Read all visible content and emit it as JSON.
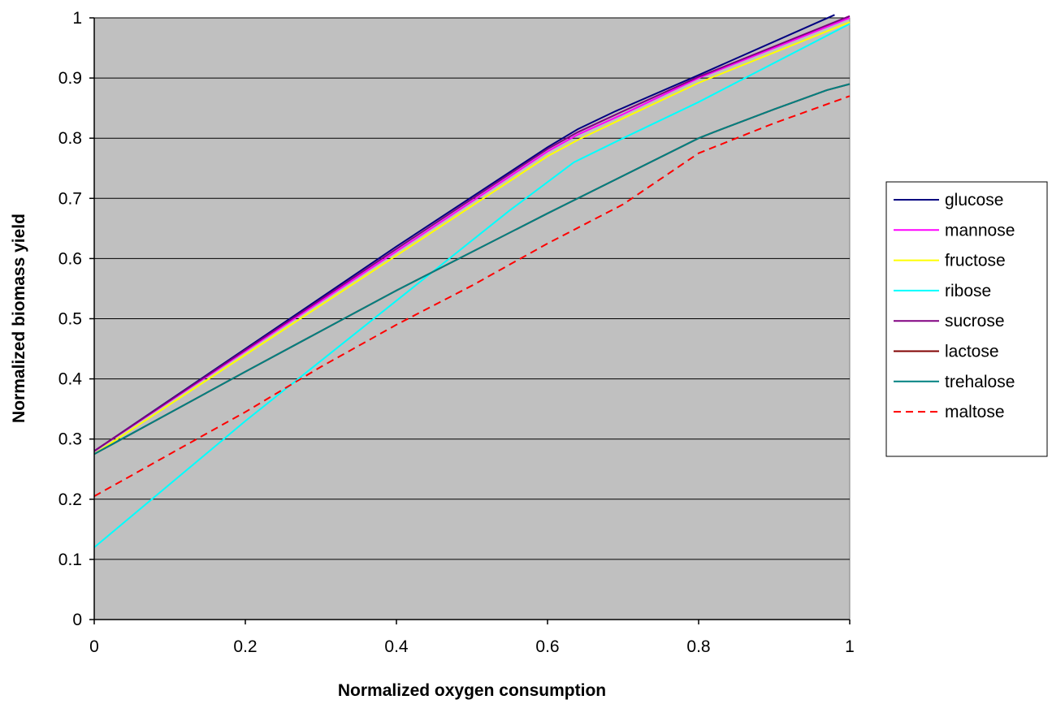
{
  "chart_data": {
    "type": "line",
    "title": "",
    "xlabel": "Normalized oxygen consumption",
    "ylabel": "Normalized biomass yield",
    "xlim": [
      0,
      1
    ],
    "ylim": [
      0,
      1
    ],
    "xticks": [
      "0",
      "0.2",
      "0.4",
      "0.6",
      "0.8",
      "1"
    ],
    "yticks": [
      "0",
      "0.1",
      "0.2",
      "0.3",
      "0.4",
      "0.5",
      "0.6",
      "0.7",
      "0.8",
      "0.9",
      "1"
    ],
    "grid": "horizontal",
    "legend_position": "right",
    "plot_background": "#c0c0c0",
    "series": [
      {
        "name": "glucose",
        "color": "#000080",
        "dash": "solid",
        "points": [
          [
            0,
            0.28
          ],
          [
            0.2,
            0.45
          ],
          [
            0.4,
            0.62
          ],
          [
            0.6,
            0.785
          ],
          [
            0.64,
            0.815
          ],
          [
            0.69,
            0.845
          ],
          [
            0.8,
            0.905
          ],
          [
            0.98,
            1.005
          ]
        ]
      },
      {
        "name": "mannose",
        "color": "#ff00ff",
        "dash": "solid",
        "points": [
          [
            0,
            0.28
          ],
          [
            0.2,
            0.446
          ],
          [
            0.4,
            0.612
          ],
          [
            0.6,
            0.778
          ],
          [
            0.64,
            0.806
          ],
          [
            0.7,
            0.84
          ],
          [
            0.8,
            0.9
          ],
          [
            1.0,
            1.0
          ]
        ]
      },
      {
        "name": "fructose",
        "color": "#ffff00",
        "dash": "solid",
        "points": [
          [
            0,
            0.275
          ],
          [
            0.2,
            0.44
          ],
          [
            0.4,
            0.605
          ],
          [
            0.6,
            0.77
          ],
          [
            0.64,
            0.797
          ],
          [
            0.7,
            0.833
          ],
          [
            0.8,
            0.892
          ],
          [
            1.0,
            0.993
          ]
        ]
      },
      {
        "name": "ribose",
        "color": "#00ffff",
        "dash": "solid",
        "points": [
          [
            0,
            0.12
          ],
          [
            0.2,
            0.33
          ],
          [
            0.4,
            0.53
          ],
          [
            0.55,
            0.68
          ],
          [
            0.635,
            0.76
          ],
          [
            0.7,
            0.8
          ],
          [
            0.8,
            0.86
          ],
          [
            1.0,
            0.99
          ]
        ]
      },
      {
        "name": "sucrose",
        "color": "#800080",
        "dash": "solid",
        "points": [
          [
            0,
            0.28
          ],
          [
            0.2,
            0.448
          ],
          [
            0.4,
            0.616
          ],
          [
            0.6,
            0.782
          ],
          [
            0.64,
            0.81
          ],
          [
            0.695,
            0.842
          ],
          [
            0.8,
            0.902
          ],
          [
            1.0,
            1.003
          ]
        ]
      },
      {
        "name": "lactose",
        "color": "#800000",
        "dash": "solid",
        "points": [
          [
            0,
            0.275
          ],
          [
            0.2,
            0.412
          ],
          [
            0.4,
            0.547
          ],
          [
            0.6,
            0.675
          ],
          [
            0.8,
            0.8
          ],
          [
            0.82,
            0.81
          ],
          [
            0.9,
            0.848
          ],
          [
            0.97,
            0.88
          ],
          [
            1.0,
            0.89
          ]
        ]
      },
      {
        "name": "trehalose",
        "color": "#008080",
        "dash": "solid",
        "points": [
          [
            0,
            0.275
          ],
          [
            0.2,
            0.412
          ],
          [
            0.4,
            0.547
          ],
          [
            0.6,
            0.675
          ],
          [
            0.8,
            0.8
          ],
          [
            0.82,
            0.81
          ],
          [
            0.9,
            0.848
          ],
          [
            0.97,
            0.88
          ],
          [
            1.0,
            0.89
          ]
        ]
      },
      {
        "name": "maltose",
        "color": "#ff0000",
        "dash": "dashed",
        "points": [
          [
            0,
            0.205
          ],
          [
            0.05,
            0.24
          ],
          [
            0.1,
            0.275
          ],
          [
            0.2,
            0.345
          ],
          [
            0.3,
            0.42
          ],
          [
            0.4,
            0.49
          ],
          [
            0.5,
            0.555
          ],
          [
            0.6,
            0.625
          ],
          [
            0.7,
            0.69
          ],
          [
            0.8,
            0.775
          ],
          [
            0.9,
            0.825
          ],
          [
            1.0,
            0.87
          ]
        ]
      }
    ]
  }
}
